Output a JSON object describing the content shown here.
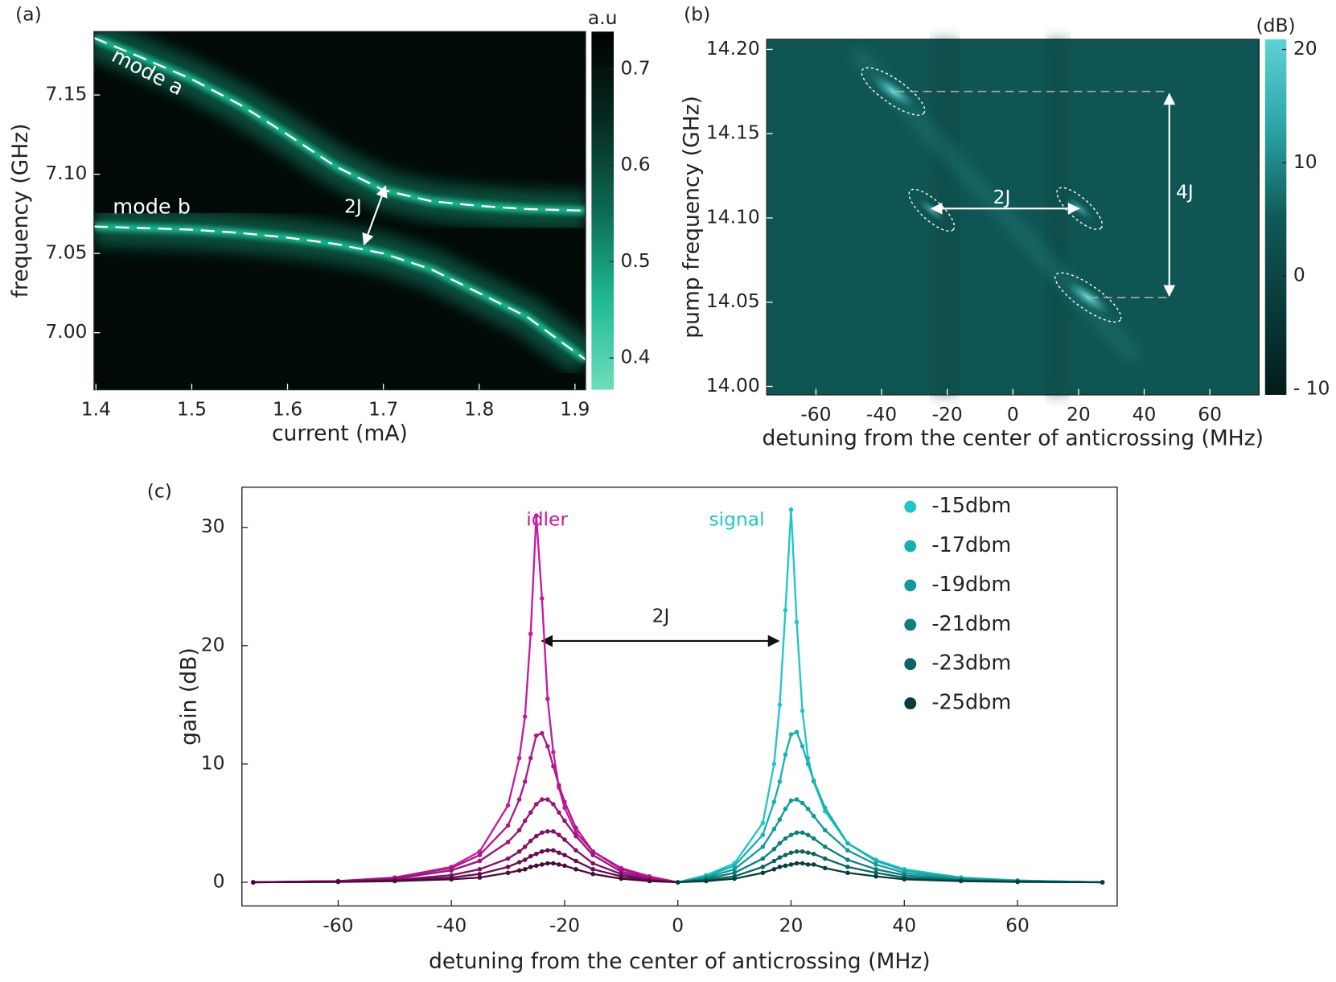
{
  "chart_data": [
    {
      "type": "heatmap",
      "panel": "(a)",
      "xlabel": "current (mA)",
      "ylabel": "frequency (GHz)",
      "xlim": [
        1.398,
        1.911
      ],
      "xticks": [
        1.4,
        1.5,
        1.6,
        1.7,
        1.8,
        1.9
      ],
      "ylim": [
        6.964,
        7.19
      ],
      "yticks": [
        {
          "value": 7.0,
          "label": "7.00"
        },
        7.05,
        {
          "value": 7.1,
          "label": "7.10"
        },
        7.15
      ],
      "colorbar": {
        "label": "a.u",
        "lim": [
          0.367,
          0.739
        ],
        "ticks": [
          0.4,
          0.5,
          0.6,
          0.7
        ],
        "colors": [
          "#6fdcbc",
          "#1dbb92",
          "#0d6a52",
          "#062a22",
          "#000000"
        ]
      },
      "background": "#020a08",
      "glow_color": "#1fc79a",
      "curves": [
        {
          "label": "mode a",
          "x": [
            1.398,
            1.45,
            1.5,
            1.55,
            1.6,
            1.65,
            1.7,
            1.75,
            1.8,
            1.85,
            1.911
          ],
          "y": [
            7.186,
            7.173,
            7.16,
            7.144,
            7.125,
            7.105,
            7.09,
            7.083,
            7.08,
            7.078,
            7.077
          ]
        },
        {
          "label": "mode b",
          "x": [
            1.398,
            1.45,
            1.5,
            1.55,
            1.6,
            1.65,
            1.7,
            1.75,
            1.8,
            1.85,
            1.911
          ],
          "y": [
            7.067,
            7.066,
            7.065,
            7.063,
            7.06,
            7.056,
            7.05,
            7.04,
            7.025,
            7.01,
            6.983
          ]
        }
      ],
      "annotations": [
        "2J"
      ]
    },
    {
      "type": "heatmap",
      "panel": "(b)",
      "xlabel": "detuning from the center of anticrossing (MHz)",
      "ylabel": "pump frequency (GHz)",
      "xlim": [
        -75,
        75
      ],
      "xticks": [
        -60,
        -40,
        -20,
        0,
        20,
        40,
        60
      ],
      "ylim": [
        13.995,
        14.206
      ],
      "yticks": [
        {
          "value": 14.0,
          "label": "14.00"
        },
        14.05,
        {
          "value": 14.1,
          "label": "14.10"
        },
        14.15,
        {
          "value": 14.2,
          "label": "14.20"
        }
      ],
      "colorbar": {
        "label": "(dB)",
        "lim": [
          -10.5,
          20.9
        ],
        "ticks": [
          {
            "value": -10,
            "label": "- 10"
          },
          0,
          10,
          20
        ],
        "colors": [
          "#031a1a",
          "#0a3b3b",
          "#0f5a58",
          "#2aa5a5",
          "#5fd2d6"
        ]
      },
      "background": "#0f5553",
      "annotations": [
        "2J",
        "4J"
      ]
    },
    {
      "type": "line",
      "panel": "(c)",
      "xlabel": "detuning from the center of anticrossing (MHz)",
      "ylabel": "gain (dB)",
      "xlim": [
        -77,
        77.6
      ],
      "xticks": [
        -60,
        -40,
        -20,
        0,
        20,
        40,
        60
      ],
      "ylim": [
        -2.0,
        33.4
      ],
      "yticks": [
        0,
        10,
        20,
        30
      ],
      "x": [
        -75,
        -60,
        -50,
        -40,
        -35,
        -30,
        -28,
        -27,
        -26,
        -25,
        -24,
        -23,
        -22,
        -21,
        -20,
        -18,
        -15,
        -10,
        -5,
        0,
        5,
        10,
        15,
        17,
        18,
        19,
        20,
        21,
        22,
        23,
        24,
        26,
        30,
        35,
        40,
        50,
        60,
        75
      ],
      "series": [
        {
          "name": "-15dbm",
          "color": "#1fc6c6",
          "idler_color": "#c61a9e",
          "values": [
            0,
            0.1,
            0.4,
            1.3,
            2.6,
            6.5,
            10.5,
            14,
            21,
            31,
            24,
            15.5,
            11,
            8,
            6.3,
            4.2,
            2.6,
            1.2,
            0.5,
            0,
            0.6,
            1.6,
            5,
            10,
            15,
            23,
            31.5,
            22,
            14.5,
            10.5,
            8.5,
            6,
            3.3,
            1.9,
            1.1,
            0.4,
            0.15,
            0
          ]
        },
        {
          "name": "-17dbm",
          "color": "#17b0b0",
          "idler_color": "#b0168c",
          "values": [
            0,
            0.1,
            0.4,
            1.2,
            2.3,
            4.8,
            7,
            8.5,
            10.5,
            12.4,
            12.6,
            11.5,
            9.8,
            8.2,
            6.8,
            4.6,
            2.6,
            1.1,
            0.4,
            0,
            0.5,
            1.4,
            4,
            6.8,
            8.5,
            10.8,
            12.5,
            12.7,
            11.5,
            10,
            8.6,
            6.3,
            3.3,
            1.8,
            1.0,
            0.4,
            0.15,
            0
          ]
        },
        {
          "name": "-19dbm",
          "color": "#129a9a",
          "idler_color": "#9a137b",
          "values": [
            0,
            0.1,
            0.3,
            1.0,
            1.8,
            3.4,
            4.4,
            5.2,
            5.9,
            6.6,
            7.0,
            7.0,
            6.6,
            5.9,
            5.2,
            3.9,
            2.3,
            0.9,
            0.3,
            0,
            0.4,
            1.1,
            3,
            4.5,
            5.3,
            6.2,
            6.9,
            7.0,
            6.7,
            6.2,
            5.6,
            4.4,
            2.7,
            1.5,
            0.8,
            0.3,
            0.1,
            0
          ]
        },
        {
          "name": "-21dbm",
          "color": "#0f7e7e",
          "idler_color": "#811066",
          "values": [
            0,
            0.05,
            0.2,
            0.6,
            1.1,
            2.0,
            2.6,
            3.0,
            3.5,
            3.9,
            4.2,
            4.3,
            4.3,
            4.0,
            3.6,
            2.7,
            1.6,
            0.7,
            0.2,
            0,
            0.3,
            0.8,
            2.0,
            2.8,
            3.3,
            3.7,
            4.0,
            4.2,
            4.2,
            4.0,
            3.7,
            3.0,
            1.9,
            1.1,
            0.6,
            0.2,
            0.1,
            0
          ]
        },
        {
          "name": "-23dbm",
          "color": "#0b6464",
          "idler_color": "#660d52",
          "values": [
            0,
            0.05,
            0.15,
            0.4,
            0.7,
            1.3,
            1.7,
            1.9,
            2.2,
            2.4,
            2.6,
            2.7,
            2.7,
            2.5,
            2.3,
            1.8,
            1.1,
            0.5,
            0.15,
            0,
            0.2,
            0.5,
            1.3,
            1.8,
            2.1,
            2.3,
            2.5,
            2.6,
            2.6,
            2.5,
            2.4,
            2.0,
            1.3,
            0.8,
            0.4,
            0.15,
            0.05,
            0
          ]
        },
        {
          "name": "-25dbm",
          "color": "#073d3d",
          "idler_color": "#480a3a",
          "values": [
            0,
            0.03,
            0.1,
            0.25,
            0.4,
            0.8,
            1.0,
            1.1,
            1.3,
            1.4,
            1.5,
            1.6,
            1.6,
            1.5,
            1.4,
            1.1,
            0.7,
            0.3,
            0.1,
            0,
            0.1,
            0.3,
            0.8,
            1.1,
            1.3,
            1.4,
            1.5,
            1.6,
            1.6,
            1.5,
            1.5,
            1.2,
            0.8,
            0.5,
            0.25,
            0.1,
            0.03,
            0
          ]
        }
      ],
      "annotations": [
        "idler",
        "signal",
        "2J"
      ]
    }
  ]
}
